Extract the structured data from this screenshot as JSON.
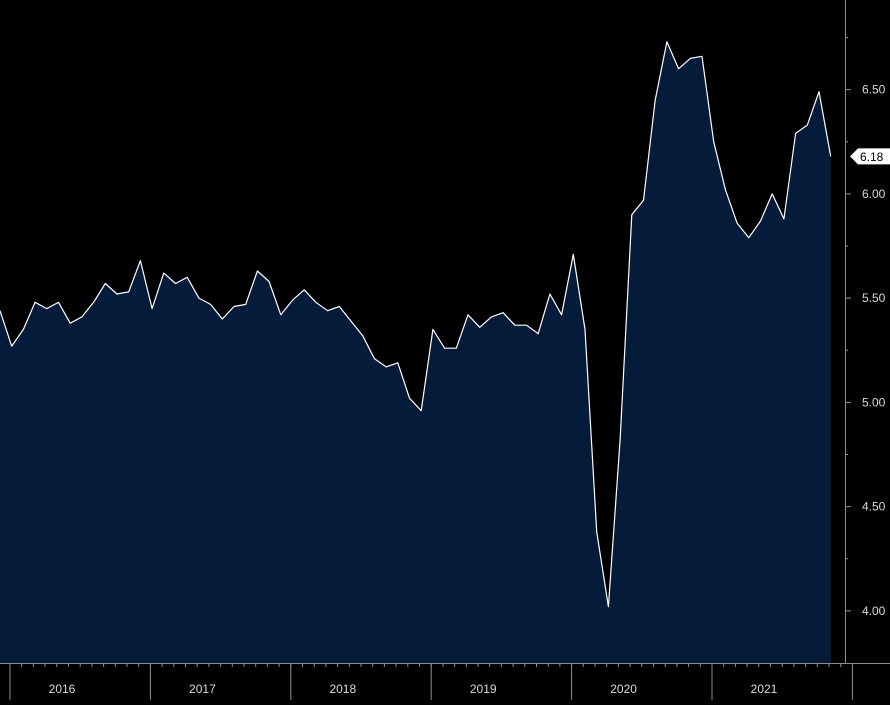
{
  "chart_data": {
    "type": "area",
    "title": "",
    "xlabel": "",
    "ylabel": "",
    "ylim": [
      3.75,
      6.93
    ],
    "grid": false,
    "legend": "none",
    "y_ticks": [
      "4.00",
      "4.50",
      "5.00",
      "5.50",
      "6.00",
      "6.50"
    ],
    "year_labels": [
      "2016",
      "2017",
      "2018",
      "2019",
      "2020",
      "2021"
    ],
    "last_value_label": "6.18",
    "colors": {
      "background": "#000000",
      "fill": "#041c3a",
      "line": "#ffffff",
      "axis": "#8f8f8f",
      "text": "#d9d9d9",
      "marker": "#ffffff",
      "marker_text": "#000000"
    },
    "x_start": "2016-01",
    "series": [
      {
        "values": [
          5.44,
          5.27,
          5.35,
          5.48,
          5.45,
          5.48,
          5.38,
          5.41,
          5.48,
          5.57,
          5.52,
          5.53,
          5.68,
          5.45,
          5.62,
          5.57,
          5.6,
          5.5,
          5.47,
          5.4,
          5.46,
          5.47,
          5.63,
          5.58,
          5.42,
          5.49,
          5.54,
          5.48,
          5.44,
          5.46,
          5.39,
          5.32,
          5.21,
          5.17,
          5.19,
          5.02,
          4.96,
          5.35,
          5.26,
          5.26,
          5.42,
          5.36,
          5.41,
          5.43,
          5.37,
          5.37,
          5.33,
          5.52,
          5.42,
          5.71,
          5.35,
          4.38,
          4.02,
          4.82,
          5.9,
          5.97,
          6.45,
          6.73,
          6.6,
          6.65,
          6.66,
          6.25,
          6.02,
          5.86,
          5.79,
          5.87,
          6.0,
          5.88,
          6.29,
          6.33,
          6.49,
          6.18
        ]
      }
    ]
  }
}
